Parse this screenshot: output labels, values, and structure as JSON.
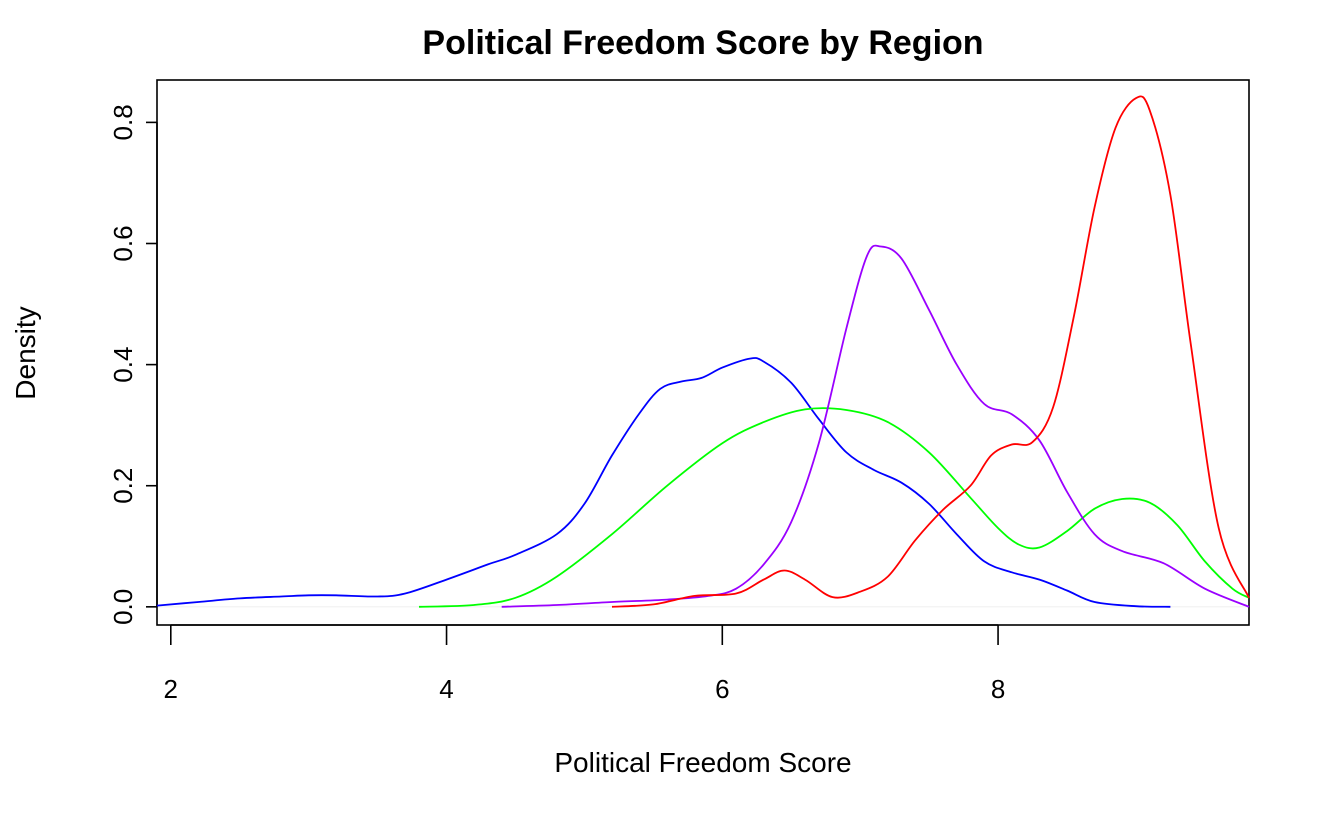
{
  "chart_data": {
    "type": "line",
    "title": "Political Freedom Score by Region",
    "xlabel": "Political Freedom Score",
    "ylabel": "Density",
    "xlim": [
      1.9,
      9.82
    ],
    "ylim": [
      -0.03,
      0.87
    ],
    "xticks": [
      2,
      4,
      6,
      8
    ],
    "xtick_labels": [
      "2",
      "4",
      "6",
      "8"
    ],
    "yticks": [
      0.0,
      0.2,
      0.4,
      0.6,
      0.8
    ],
    "ytick_labels": [
      "0.0",
      "0.2",
      "0.4",
      "0.6",
      "0.8"
    ],
    "grid": false,
    "legend": "none",
    "baseline": {
      "y": 0,
      "color": "#f0f0f0"
    },
    "series": [
      {
        "color": "#0000ff",
        "points": [
          [
            1.9,
            0.002
          ],
          [
            2.2,
            0.008
          ],
          [
            2.5,
            0.014
          ],
          [
            2.8,
            0.017
          ],
          [
            3.0,
            0.019
          ],
          [
            3.2,
            0.019
          ],
          [
            3.5,
            0.017
          ],
          [
            3.7,
            0.022
          ],
          [
            4.0,
            0.045
          ],
          [
            4.3,
            0.07
          ],
          [
            4.5,
            0.086
          ],
          [
            4.8,
            0.12
          ],
          [
            5.0,
            0.17
          ],
          [
            5.2,
            0.25
          ],
          [
            5.4,
            0.32
          ],
          [
            5.55,
            0.36
          ],
          [
            5.7,
            0.372
          ],
          [
            5.85,
            0.378
          ],
          [
            6.0,
            0.395
          ],
          [
            6.2,
            0.41
          ],
          [
            6.3,
            0.405
          ],
          [
            6.5,
            0.37
          ],
          [
            6.7,
            0.31
          ],
          [
            6.9,
            0.255
          ],
          [
            7.1,
            0.226
          ],
          [
            7.3,
            0.205
          ],
          [
            7.5,
            0.17
          ],
          [
            7.7,
            0.12
          ],
          [
            7.9,
            0.075
          ],
          [
            8.1,
            0.057
          ],
          [
            8.3,
            0.045
          ],
          [
            8.5,
            0.027
          ],
          [
            8.7,
            0.008
          ],
          [
            9.0,
            0.001
          ],
          [
            9.25,
            0.0
          ]
        ]
      },
      {
        "color": "#00ff00",
        "points": [
          [
            3.8,
            0.0
          ],
          [
            4.2,
            0.003
          ],
          [
            4.5,
            0.015
          ],
          [
            4.8,
            0.05
          ],
          [
            5.2,
            0.12
          ],
          [
            5.6,
            0.2
          ],
          [
            6.0,
            0.27
          ],
          [
            6.3,
            0.305
          ],
          [
            6.6,
            0.326
          ],
          [
            6.9,
            0.325
          ],
          [
            7.2,
            0.305
          ],
          [
            7.5,
            0.255
          ],
          [
            7.8,
            0.18
          ],
          [
            8.0,
            0.13
          ],
          [
            8.15,
            0.103
          ],
          [
            8.3,
            0.098
          ],
          [
            8.5,
            0.125
          ],
          [
            8.7,
            0.162
          ],
          [
            8.9,
            0.178
          ],
          [
            9.1,
            0.172
          ],
          [
            9.3,
            0.135
          ],
          [
            9.5,
            0.075
          ],
          [
            9.7,
            0.03
          ],
          [
            9.82,
            0.015
          ]
        ]
      },
      {
        "color": "#9a00ff",
        "points": [
          [
            4.4,
            0.0
          ],
          [
            4.8,
            0.003
          ],
          [
            5.2,
            0.008
          ],
          [
            5.6,
            0.012
          ],
          [
            5.9,
            0.018
          ],
          [
            6.1,
            0.03
          ],
          [
            6.3,
            0.07
          ],
          [
            6.5,
            0.14
          ],
          [
            6.7,
            0.27
          ],
          [
            6.9,
            0.46
          ],
          [
            7.05,
            0.58
          ],
          [
            7.15,
            0.595
          ],
          [
            7.3,
            0.575
          ],
          [
            7.5,
            0.49
          ],
          [
            7.7,
            0.4
          ],
          [
            7.9,
            0.335
          ],
          [
            8.1,
            0.318
          ],
          [
            8.3,
            0.275
          ],
          [
            8.5,
            0.19
          ],
          [
            8.7,
            0.12
          ],
          [
            8.9,
            0.092
          ],
          [
            9.2,
            0.072
          ],
          [
            9.5,
            0.03
          ],
          [
            9.82,
            0.0
          ]
        ]
      },
      {
        "color": "#ff0000",
        "points": [
          [
            5.2,
            0.0
          ],
          [
            5.5,
            0.004
          ],
          [
            5.8,
            0.018
          ],
          [
            6.1,
            0.022
          ],
          [
            6.3,
            0.045
          ],
          [
            6.45,
            0.06
          ],
          [
            6.6,
            0.045
          ],
          [
            6.8,
            0.016
          ],
          [
            7.0,
            0.025
          ],
          [
            7.2,
            0.05
          ],
          [
            7.4,
            0.11
          ],
          [
            7.6,
            0.16
          ],
          [
            7.8,
            0.2
          ],
          [
            7.95,
            0.25
          ],
          [
            8.1,
            0.268
          ],
          [
            8.25,
            0.272
          ],
          [
            8.4,
            0.33
          ],
          [
            8.55,
            0.48
          ],
          [
            8.7,
            0.66
          ],
          [
            8.85,
            0.79
          ],
          [
            9.0,
            0.84
          ],
          [
            9.1,
            0.82
          ],
          [
            9.25,
            0.68
          ],
          [
            9.4,
            0.43
          ],
          [
            9.6,
            0.13
          ],
          [
            9.82,
            0.015
          ]
        ]
      }
    ]
  }
}
